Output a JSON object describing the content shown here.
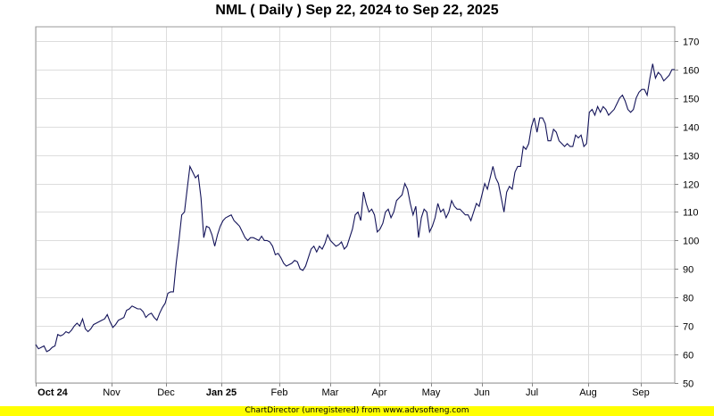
{
  "chart_data": {
    "type": "line",
    "title": "NML ( Daily ) Sep 22, 2024 to Sep 22, 2025",
    "ylim": [
      50,
      175
    ],
    "yticks": [
      50,
      60,
      70,
      80,
      90,
      100,
      110,
      120,
      130,
      140,
      150,
      160,
      170
    ],
    "y_axis_side": "right",
    "grid": true,
    "line_color": "#14145a",
    "x_labels": [
      {
        "label": "Oct 24",
        "bold": true
      },
      {
        "label": "Nov",
        "bold": false
      },
      {
        "label": "Dec",
        "bold": false
      },
      {
        "label": "Jan 25",
        "bold": true
      },
      {
        "label": "Feb",
        "bold": false
      },
      {
        "label": "Mar",
        "bold": false
      },
      {
        "label": "Apr",
        "bold": false
      },
      {
        "label": "May",
        "bold": false
      },
      {
        "label": "Jun",
        "bold": false
      },
      {
        "label": "Jul",
        "bold": false
      },
      {
        "label": "Aug",
        "bold": false
      },
      {
        "label": "Sep",
        "bold": false
      }
    ],
    "series": [
      {
        "values": [
          63.5,
          62.0,
          62.5,
          63.0,
          61.0,
          61.5,
          62.5,
          63.0,
          67.0,
          66.5,
          67.0,
          68.0,
          67.5,
          68.5,
          70.0,
          71.0,
          70.0,
          72.5,
          69.0,
          68.0,
          69.0,
          70.5,
          71.0,
          71.5,
          72.0,
          72.5,
          74.0,
          71.5,
          69.5,
          70.5,
          72.0,
          72.5,
          73.0,
          75.5,
          76.0,
          77.0,
          76.5,
          76.0,
          76.0,
          75.0,
          73.0,
          74.0,
          74.5,
          73.0,
          72.0,
          74.5,
          76.5,
          78.0,
          81.5,
          82.0,
          82.0,
          92.0,
          100.0,
          109.0,
          110.0,
          118.0,
          126.0,
          124.0,
          122.0,
          123.0,
          115.0,
          101.0,
          105.0,
          104.5,
          102.0,
          98.0,
          102.0,
          105.0,
          107.0,
          108.0,
          108.5,
          109.0,
          107.0,
          106.0,
          105.0,
          103.0,
          101.0,
          100.0,
          101.0,
          101.0,
          100.5,
          100.0,
          101.5,
          100.0,
          100.0,
          99.5,
          98.0,
          95.0,
          95.5,
          94.0,
          92.0,
          91.0,
          91.5,
          92.0,
          93.0,
          92.5,
          90.0,
          89.5,
          91.0,
          94.0,
          97.0,
          98.0,
          96.0,
          98.0,
          97.0,
          99.0,
          102.0,
          100.0,
          99.0,
          98.0,
          98.5,
          99.5,
          97.0,
          98.0,
          101.0,
          104.0,
          109.0,
          110.0,
          107.0,
          117.0,
          113.0,
          110.0,
          111.0,
          109.0,
          103.0,
          104.0,
          106.0,
          110.0,
          111.0,
          108.0,
          110.0,
          114.0,
          115.0,
          116.0,
          120.0,
          118.0,
          113.0,
          109.0,
          112.0,
          101.0,
          108.0,
          111.0,
          110.0,
          103.0,
          105.0,
          108.0,
          113.0,
          110.0,
          111.0,
          108.0,
          110.0,
          114.0,
          112.0,
          111.0,
          111.0,
          110.0,
          109.0,
          109.0,
          107.0,
          110.0,
          113.0,
          112.0,
          116.0,
          120.0,
          118.0,
          122.0,
          126.0,
          122.0,
          120.0,
          115.0,
          110.0,
          117.0,
          119.0,
          118.0,
          124.0,
          126.0,
          126.0,
          133.0,
          132.0,
          134.0,
          140.0,
          143.0,
          138.0,
          143.0,
          143.0,
          141.0,
          135.0,
          135.0,
          139.0,
          138.0,
          135.0,
          134.0,
          133.0,
          134.0,
          133.0,
          133.0,
          137.0,
          136.0,
          137.0,
          133.0,
          134.0,
          145.0,
          146.0,
          144.0,
          147.0,
          145.0,
          147.0,
          146.0,
          144.0,
          145.0,
          146.0,
          148.0,
          150.0,
          151.0,
          149.0,
          146.0,
          145.0,
          146.0,
          150.0,
          152.0,
          153.0,
          153.0,
          151.0,
          157.0,
          162.0,
          157.0,
          159.0,
          158.0,
          156.0,
          157.0,
          158.0,
          160.0,
          160.0
        ]
      }
    ]
  },
  "footer": {
    "text": "ChartDirector (unregistered) from www.advsofteng.com",
    "color": "#ffff00"
  }
}
